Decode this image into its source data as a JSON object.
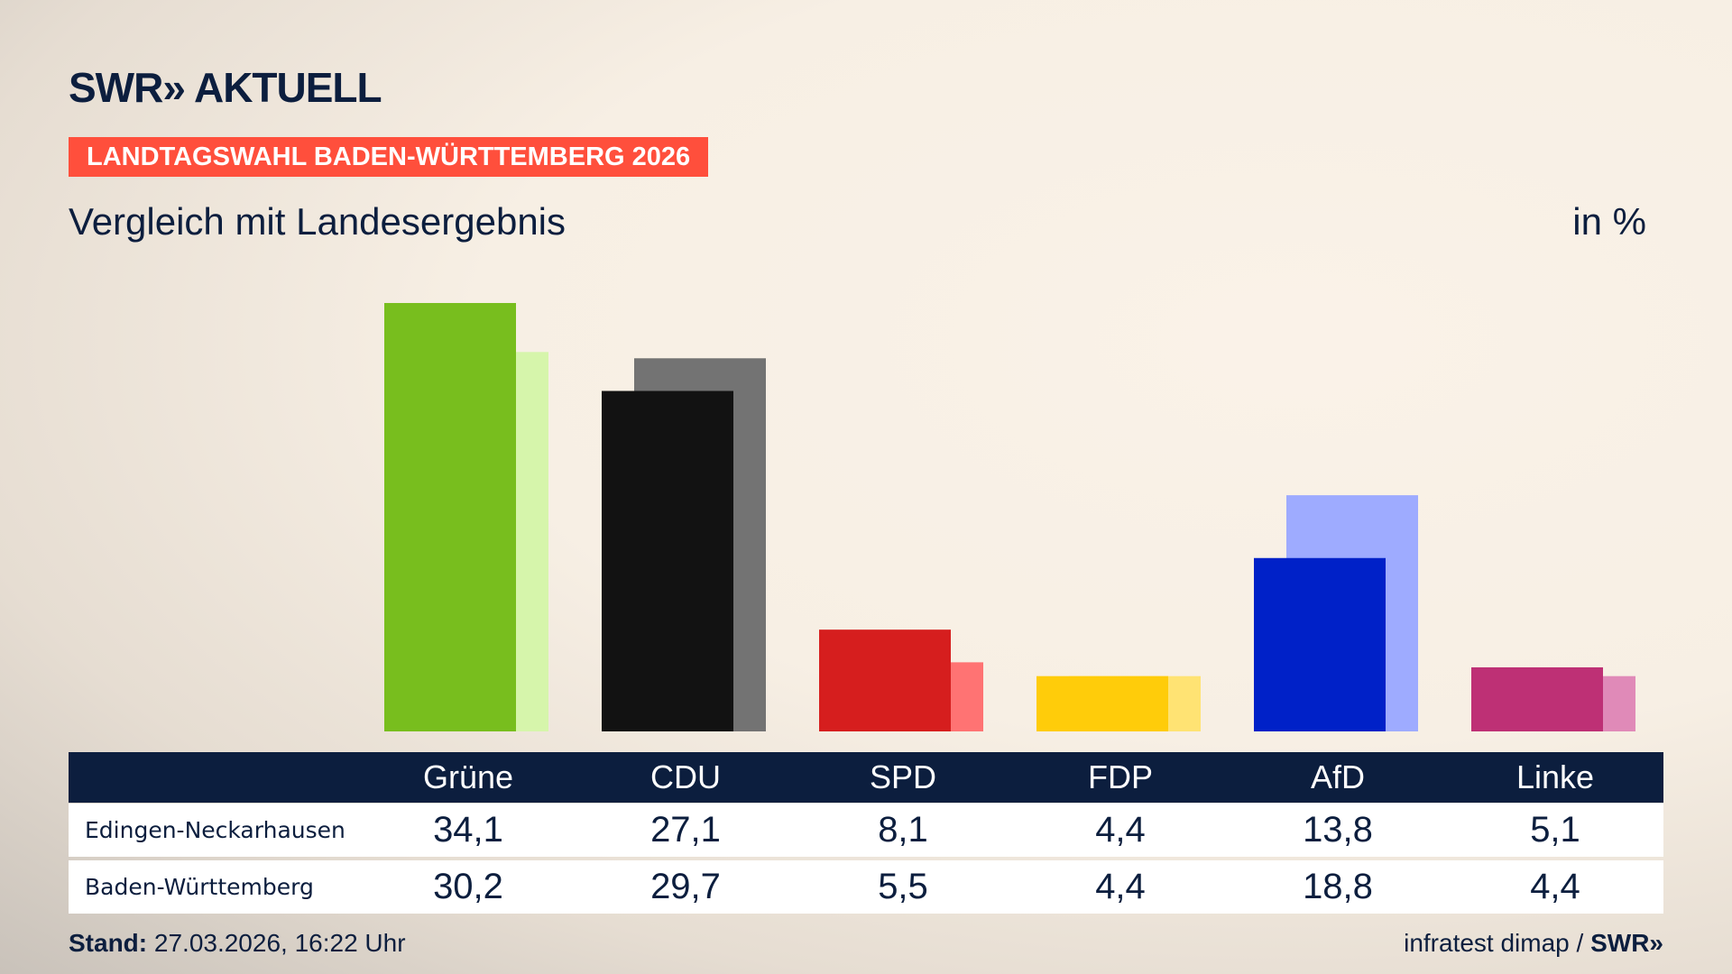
{
  "brand": {
    "logo": "SWR» AKTUELL"
  },
  "header": {
    "banner": "LANDTAGSWAHL BADEN-WÜRTTEMBERG 2026",
    "subtitle": "Vergleich mit Landesergebnis",
    "unit": "in %"
  },
  "chart_data": {
    "type": "bar",
    "categories": [
      "Grüne",
      "CDU",
      "SPD",
      "FDP",
      "AfD",
      "Linke"
    ],
    "series": [
      {
        "name": "Edingen-Neckarhausen",
        "values": [
          34.1,
          27.1,
          8.1,
          4.4,
          13.8,
          5.1
        ],
        "labels": [
          "34,1",
          "27,1",
          "8,1",
          "4,4",
          "13,8",
          "5,1"
        ]
      },
      {
        "name": "Baden-Württemberg",
        "values": [
          30.2,
          29.7,
          5.5,
          4.4,
          18.8,
          4.4
        ],
        "labels": [
          "30,2",
          "29,7",
          "5,5",
          "4,4",
          "18,8",
          "4,4"
        ]
      }
    ],
    "colors": {
      "primary": [
        "#78be1e",
        "#121212",
        "#d61e1e",
        "#ffcc0a",
        "#0021c8",
        "#be3075"
      ],
      "secondary": [
        "#d6f5ab",
        "#737373",
        "#ff7373",
        "#ffe373",
        "#9eabff",
        "#e08ab8"
      ]
    },
    "ylim": [
      0,
      34.1
    ],
    "grid": false
  },
  "footer": {
    "stand_label": "Stand:",
    "stand_value": " 27.03.2026, 16:22 Uhr",
    "source": "infratest dimap / ",
    "source_logo": "SWR»"
  }
}
